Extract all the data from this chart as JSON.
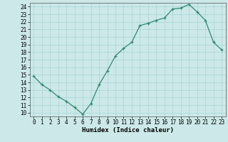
{
  "x": [
    0,
    1,
    2,
    3,
    4,
    5,
    6,
    7,
    8,
    9,
    10,
    11,
    12,
    13,
    14,
    15,
    16,
    17,
    18,
    19,
    20,
    21,
    22,
    23
  ],
  "y": [
    14.8,
    13.7,
    13.0,
    12.1,
    11.5,
    10.7,
    9.8,
    11.2,
    13.7,
    15.5,
    17.5,
    18.5,
    19.3,
    21.5,
    21.8,
    22.2,
    22.5,
    23.7,
    23.8,
    24.3,
    23.3,
    22.2,
    19.3,
    18.3
  ],
  "xlabel": "Humidex (Indice chaleur)",
  "xlim": [
    -0.5,
    23.5
  ],
  "ylim": [
    9.5,
    24.5
  ],
  "yticks": [
    10,
    11,
    12,
    13,
    14,
    15,
    16,
    17,
    18,
    19,
    20,
    21,
    22,
    23,
    24
  ],
  "xticks": [
    0,
    1,
    2,
    3,
    4,
    5,
    6,
    7,
    8,
    9,
    10,
    11,
    12,
    13,
    14,
    15,
    16,
    17,
    18,
    19,
    20,
    21,
    22,
    23
  ],
  "line_color": "#2d8b6f",
  "bg_color": "#cce8e8",
  "grid_color": "#9fcfcf",
  "tick_fontsize": 5.5,
  "xlabel_fontsize": 6.5
}
